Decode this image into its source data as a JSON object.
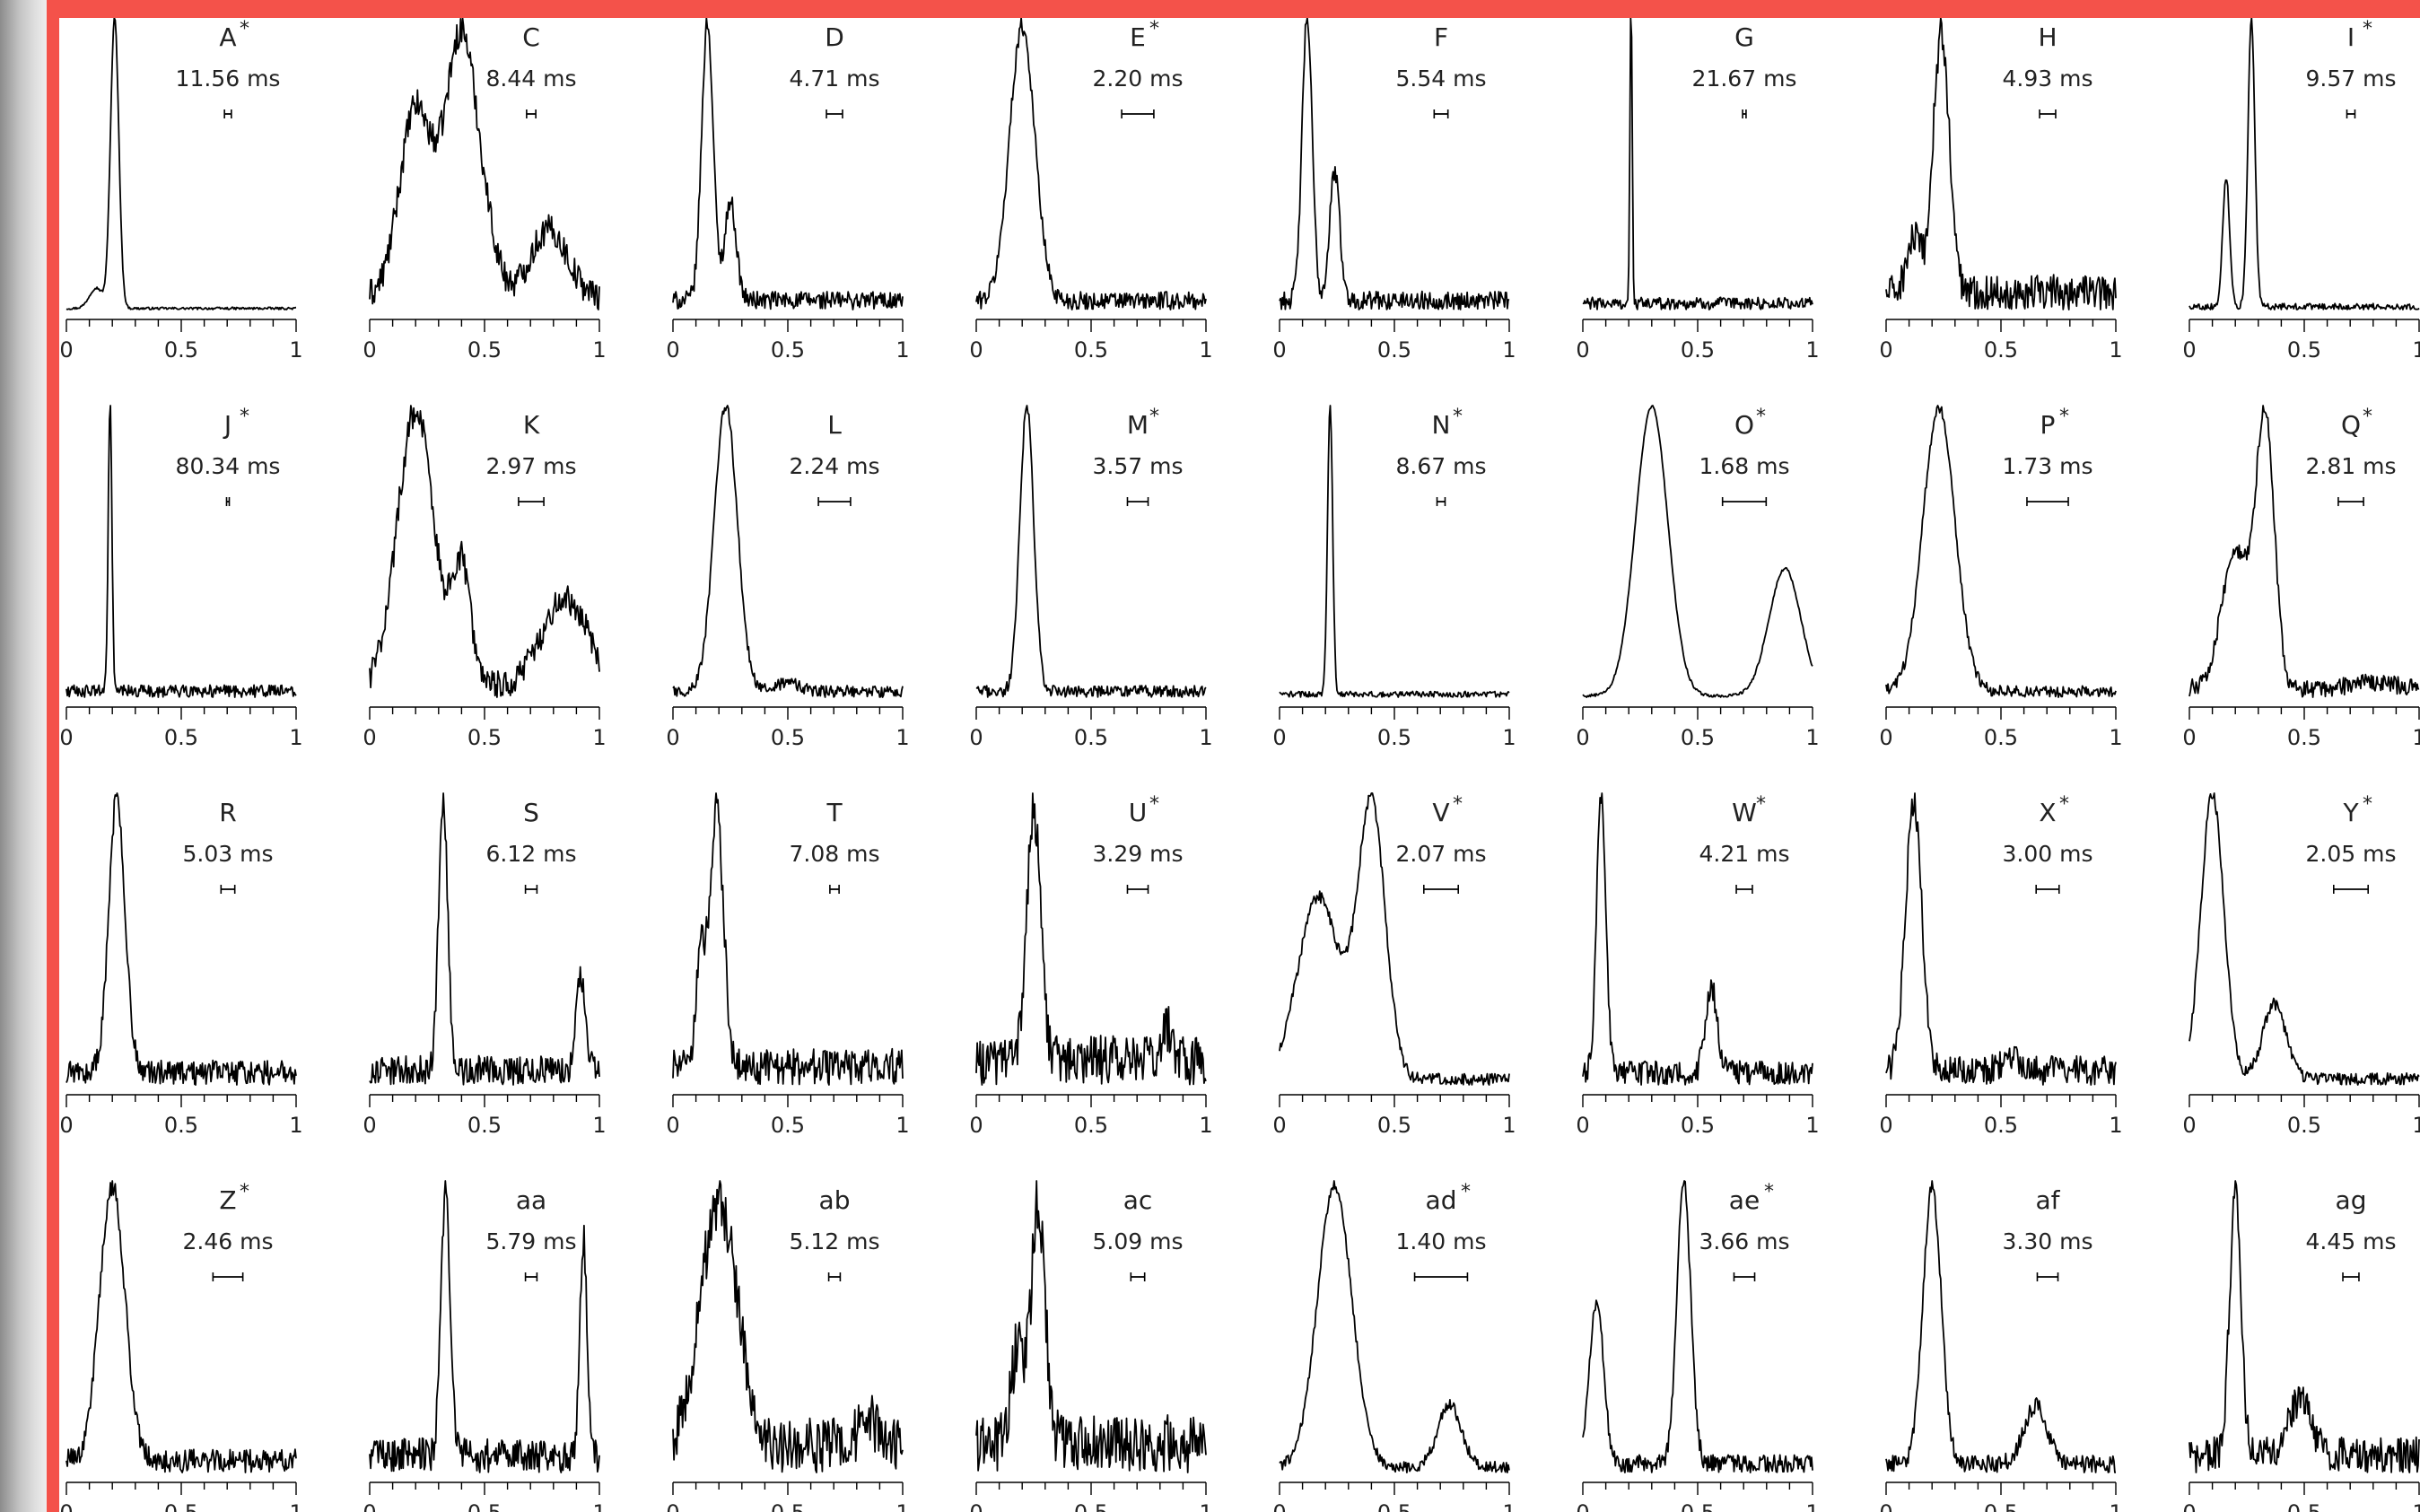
{
  "theme": {
    "frame_color": "#f4524a",
    "trace_color": "#000000",
    "background": "#ffffff"
  },
  "chart_data": [
    {
      "label": "A",
      "star": true,
      "ms": "11.56 ms",
      "x_ticks": [
        "0",
        "0.5",
        "1"
      ],
      "xlim": [
        0,
        1
      ],
      "type": "line",
      "peaks": [
        [
          0.21,
          1.0,
          0.018
        ],
        [
          0.13,
          0.08,
          0.03
        ]
      ],
      "baseline": 0.01,
      "noise": 0.004,
      "scale_bar": 0.03
    },
    {
      "label": "C",
      "star": false,
      "ms": "8.44 ms",
      "x_ticks": [
        "0",
        "0.5",
        "1"
      ],
      "xlim": [
        0,
        1
      ],
      "type": "line",
      "peaks": [
        [
          0.2,
          0.62,
          0.07
        ],
        [
          0.4,
          0.82,
          0.07
        ],
        [
          0.52,
          0.2,
          0.05
        ],
        [
          0.78,
          0.3,
          0.08
        ]
      ],
      "baseline": 0.12,
      "noise": 0.04,
      "scale_bar": 0.04
    },
    {
      "label": "D",
      "star": false,
      "ms": "4.71 ms",
      "x_ticks": [
        "0",
        "0.5",
        "1"
      ],
      "xlim": [
        0,
        1
      ],
      "type": "line",
      "peaks": [
        [
          0.15,
          1.0,
          0.025
        ],
        [
          0.25,
          0.42,
          0.025
        ]
      ],
      "baseline": 0.1,
      "noise": 0.03,
      "scale_bar": 0.07
    },
    {
      "label": "E",
      "star": true,
      "ms": "2.20 ms",
      "x_ticks": [
        "0",
        "0.5",
        "1"
      ],
      "xlim": [
        0,
        1
      ],
      "type": "line",
      "peaks": [
        [
          0.2,
          1.0,
          0.055
        ]
      ],
      "baseline": 0.1,
      "noise": 0.03,
      "scale_bar": 0.14
    },
    {
      "label": "F",
      "star": false,
      "ms": "5.54 ms",
      "x_ticks": [
        "0",
        "0.5",
        "1"
      ],
      "xlim": [
        0,
        1
      ],
      "type": "line",
      "peaks": [
        [
          0.12,
          1.0,
          0.022
        ],
        [
          0.24,
          0.5,
          0.022
        ]
      ],
      "baseline": 0.08,
      "noise": 0.03,
      "scale_bar": 0.06
    },
    {
      "label": "G",
      "star": false,
      "ms": "21.67 ms",
      "x_ticks": [
        "0",
        "0.5",
        "1"
      ],
      "xlim": [
        0,
        1
      ],
      "type": "line",
      "peaks": [
        [
          0.21,
          1.0,
          0.005
        ]
      ],
      "baseline": 0.03,
      "noise": 0.02,
      "scale_bar": 0.015
    },
    {
      "label": "H",
      "star": false,
      "ms": "4.93 ms",
      "x_ticks": [
        "0",
        "0.5",
        "1"
      ],
      "xlim": [
        0,
        1
      ],
      "type": "line",
      "peaks": [
        [
          0.24,
          1.0,
          0.035
        ],
        [
          0.12,
          0.3,
          0.03
        ],
        [
          0.65,
          0.12,
          0.1
        ]
      ],
      "baseline": 0.12,
      "noise": 0.06,
      "scale_bar": 0.07
    },
    {
      "label": "I",
      "star": true,
      "ms": "9.57 ms",
      "x_ticks": [
        "0",
        "0.5",
        "1"
      ],
      "xlim": [
        0,
        1
      ],
      "type": "line",
      "peaks": [
        [
          0.27,
          1.0,
          0.015
        ],
        [
          0.16,
          0.48,
          0.015
        ]
      ],
      "baseline": 0.05,
      "noise": 0.01,
      "scale_bar": 0.035
    },
    {
      "label": "J",
      "star": true,
      "ms": "80.34 ms",
      "x_ticks": [
        "0",
        "0.5",
        "1"
      ],
      "xlim": [
        0,
        1
      ],
      "type": "line",
      "peaks": [
        [
          0.19,
          1.0,
          0.008
        ]
      ],
      "baseline": 0.05,
      "noise": 0.02,
      "scale_bar": 0.004
    },
    {
      "label": "K",
      "star": false,
      "ms": "2.97 ms",
      "x_ticks": [
        "0",
        "0.5",
        "1"
      ],
      "xlim": [
        0,
        1
      ],
      "type": "line",
      "peaks": [
        [
          0.2,
          0.98,
          0.08
        ],
        [
          0.4,
          0.45,
          0.04
        ],
        [
          0.85,
          0.35,
          0.1
        ]
      ],
      "baseline": 0.05,
      "noise": 0.05,
      "scale_bar": 0.11
    },
    {
      "label": "L",
      "star": false,
      "ms": "2.24 ms",
      "x_ticks": [
        "0",
        "0.5",
        "1"
      ],
      "xlim": [
        0,
        1
      ],
      "type": "line",
      "peaks": [
        [
          0.23,
          1.0,
          0.05
        ],
        [
          0.5,
          0.06,
          0.05
        ]
      ],
      "baseline": 0.03,
      "noise": 0.02,
      "scale_bar": 0.14
    },
    {
      "label": "M",
      "star": true,
      "ms": "3.57 ms",
      "x_ticks": [
        "0",
        "0.5",
        "1"
      ],
      "xlim": [
        0,
        1
      ],
      "type": "line",
      "peaks": [
        [
          0.22,
          1.0,
          0.03
        ]
      ],
      "baseline": 0.04,
      "noise": 0.02,
      "scale_bar": 0.09
    },
    {
      "label": "N",
      "star": true,
      "ms": "8.67 ms",
      "x_ticks": [
        "0",
        "0.5",
        "1"
      ],
      "xlim": [
        0,
        1
      ],
      "type": "line",
      "peaks": [
        [
          0.22,
          1.0,
          0.011
        ]
      ],
      "baseline": 0.02,
      "noise": 0.01,
      "scale_bar": 0.035
    },
    {
      "label": "O",
      "star": true,
      "ms": "1.68 ms",
      "x_ticks": [
        "0",
        "0.5",
        "1"
      ],
      "xlim": [
        0,
        1
      ],
      "type": "line",
      "peaks": [
        [
          0.3,
          1.0,
          0.07
        ],
        [
          0.88,
          0.45,
          0.07
        ]
      ],
      "baseline": 0.02,
      "noise": 0.005,
      "scale_bar": 0.19
    },
    {
      "label": "P",
      "star": true,
      "ms": "1.73 ms",
      "x_ticks": [
        "0",
        "0.5",
        "1"
      ],
      "xlim": [
        0,
        1
      ],
      "type": "line",
      "peaks": [
        [
          0.23,
          1.0,
          0.07
        ]
      ],
      "baseline": 0.02,
      "noise": 0.02,
      "scale_bar": 0.18
    },
    {
      "label": "Q",
      "star": true,
      "ms": "2.81 ms",
      "x_ticks": [
        "0",
        "0.5",
        "1"
      ],
      "xlim": [
        0,
        1
      ],
      "type": "line",
      "peaks": [
        [
          0.33,
          1.0,
          0.04
        ],
        [
          0.2,
          0.55,
          0.06
        ],
        [
          0.8,
          0.1,
          0.1
        ]
      ],
      "baseline": 0.08,
      "noise": 0.03,
      "scale_bar": 0.11
    },
    {
      "label": "R",
      "star": false,
      "ms": "5.03 ms",
      "x_ticks": [
        "0",
        "0.5",
        "1"
      ],
      "xlim": [
        0,
        1
      ],
      "type": "line",
      "peaks": [
        [
          0.22,
          1.0,
          0.035
        ]
      ],
      "baseline": 0.1,
      "noise": 0.04,
      "scale_bar": 0.06
    },
    {
      "label": "S",
      "star": false,
      "ms": "6.12 ms",
      "x_ticks": [
        "0",
        "0.5",
        "1"
      ],
      "xlim": [
        0,
        1
      ],
      "type": "line",
      "peaks": [
        [
          0.32,
          1.0,
          0.02
        ],
        [
          0.92,
          0.42,
          0.02
        ]
      ],
      "baseline": 0.1,
      "noise": 0.05,
      "scale_bar": 0.05
    },
    {
      "label": "T",
      "star": false,
      "ms": "7.08 ms",
      "x_ticks": [
        "0",
        "0.5",
        "1"
      ],
      "xlim": [
        0,
        1
      ],
      "type": "line",
      "peaks": [
        [
          0.19,
          1.0,
          0.03
        ],
        [
          0.12,
          0.5,
          0.02
        ]
      ],
      "baseline": 0.15,
      "noise": 0.06,
      "scale_bar": 0.04
    },
    {
      "label": "U",
      "star": true,
      "ms": "3.29 ms",
      "x_ticks": [
        "0",
        "0.5",
        "1"
      ],
      "xlim": [
        0,
        1
      ],
      "type": "line",
      "peaks": [
        [
          0.25,
          1.0,
          0.03
        ],
        [
          0.83,
          0.3,
          0.02
        ]
      ],
      "baseline": 0.2,
      "noise": 0.08,
      "scale_bar": 0.09
    },
    {
      "label": "V",
      "star": true,
      "ms": "2.07 ms",
      "x_ticks": [
        "0",
        "0.5",
        "1"
      ],
      "xlim": [
        0,
        1
      ],
      "type": "line",
      "peaks": [
        [
          0.4,
          1.0,
          0.06
        ],
        [
          0.17,
          0.68,
          0.09
        ]
      ],
      "baseline": 0.05,
      "noise": 0.02,
      "scale_bar": 0.15
    },
    {
      "label": "W",
      "star": true,
      "ms": "4.21 ms",
      "x_ticks": [
        "0",
        "0.5",
        "1"
      ],
      "xlim": [
        0,
        1
      ],
      "type": "line",
      "peaks": [
        [
          0.08,
          1.0,
          0.02
        ],
        [
          0.56,
          0.38,
          0.025
        ]
      ],
      "baseline": 0.1,
      "noise": 0.04,
      "scale_bar": 0.07
    },
    {
      "label": "X",
      "star": true,
      "ms": "3.00 ms",
      "x_ticks": [
        "0",
        "0.5",
        "1"
      ],
      "xlim": [
        0,
        1
      ],
      "type": "line",
      "peaks": [
        [
          0.12,
          1.0,
          0.035
        ],
        [
          0.55,
          0.12,
          0.05
        ]
      ],
      "baseline": 0.08,
      "noise": 0.05,
      "scale_bar": 0.1
    },
    {
      "label": "Y",
      "star": true,
      "ms": "2.05 ms",
      "x_ticks": [
        "0",
        "0.5",
        "1"
      ],
      "xlim": [
        0,
        1
      ],
      "type": "line",
      "peaks": [
        [
          0.1,
          1.0,
          0.05
        ],
        [
          0.37,
          0.3,
          0.05
        ]
      ],
      "baseline": 0.05,
      "noise": 0.02,
      "scale_bar": 0.15
    },
    {
      "label": "Z",
      "star": true,
      "ms": "2.46 ms",
      "x_ticks": [
        "0",
        "0.5",
        "1"
      ],
      "xlim": [
        0,
        1
      ],
      "type": "line",
      "peaks": [
        [
          0.2,
          1.0,
          0.055
        ]
      ],
      "baseline": 0.06,
      "noise": 0.04,
      "scale_bar": 0.13
    },
    {
      "label": "aa",
      "star": false,
      "ms": "5.79 ms",
      "x_ticks": [
        "0",
        "0.5",
        "1"
      ],
      "xlim": [
        0,
        1
      ],
      "type": "line",
      "peaks": [
        [
          0.33,
          1.0,
          0.02
        ],
        [
          0.93,
          0.85,
          0.015
        ]
      ],
      "baseline": 0.1,
      "noise": 0.06,
      "scale_bar": 0.05
    },
    {
      "label": "ab",
      "star": false,
      "ms": "5.12 ms",
      "x_ticks": [
        "0",
        "0.5",
        "1"
      ],
      "xlim": [
        0,
        1
      ],
      "type": "line",
      "peaks": [
        [
          0.2,
          0.88,
          0.08
        ],
        [
          0.85,
          0.25,
          0.04
        ]
      ],
      "baseline": 0.18,
      "noise": 0.08,
      "scale_bar": 0.05
    },
    {
      "label": "ac",
      "star": false,
      "ms": "5.09 ms",
      "x_ticks": [
        "0",
        "0.5",
        "1"
      ],
      "xlim": [
        0,
        1
      ],
      "type": "line",
      "peaks": [
        [
          0.27,
          1.0,
          0.03
        ],
        [
          0.18,
          0.5,
          0.03
        ]
      ],
      "baseline": 0.18,
      "noise": 0.1,
      "scale_bar": 0.06
    },
    {
      "label": "ad",
      "star": true,
      "ms": "1.40 ms",
      "x_ticks": [
        "0",
        "0.5",
        "1"
      ],
      "xlim": [
        0,
        1
      ],
      "type": "line",
      "peaks": [
        [
          0.24,
          1.0,
          0.075
        ],
        [
          0.74,
          0.25,
          0.05
        ]
      ],
      "baseline": 0.03,
      "noise": 0.02,
      "scale_bar": 0.23
    },
    {
      "label": "ae",
      "star": true,
      "ms": "3.66 ms",
      "x_ticks": [
        "0",
        "0.5",
        "1"
      ],
      "xlim": [
        0,
        1
      ],
      "type": "line",
      "peaks": [
        [
          0.44,
          1.0,
          0.03
        ],
        [
          0.06,
          0.6,
          0.03
        ]
      ],
      "baseline": 0.05,
      "noise": 0.03,
      "scale_bar": 0.09
    },
    {
      "label": "af",
      "star": false,
      "ms": "3.30 ms",
      "x_ticks": [
        "0",
        "0.5",
        "1"
      ],
      "xlim": [
        0,
        1
      ],
      "type": "line",
      "peaks": [
        [
          0.2,
          1.0,
          0.04
        ],
        [
          0.65,
          0.25,
          0.05
        ]
      ],
      "baseline": 0.05,
      "noise": 0.03,
      "scale_bar": 0.09
    },
    {
      "label": "ag",
      "star": false,
      "ms": "4.45 ms",
      "x_ticks": [
        "0",
        "0.5",
        "1"
      ],
      "xlim": [
        0,
        1
      ],
      "type": "line",
      "peaks": [
        [
          0.2,
          1.0,
          0.025
        ],
        [
          0.48,
          0.3,
          0.05
        ]
      ],
      "baseline": 0.12,
      "noise": 0.06,
      "scale_bar": 0.07
    }
  ]
}
